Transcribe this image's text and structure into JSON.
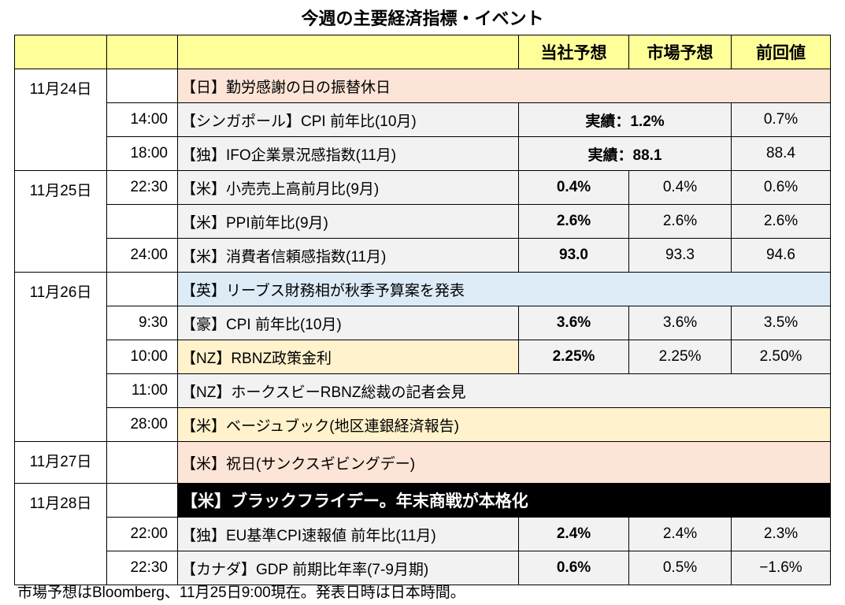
{
  "title": "今週の主要経済指標・イベント",
  "headers": [
    "",
    "",
    "",
    "当社予想",
    "市場予想",
    "前回値"
  ],
  "colors": {
    "header": "#ffff99",
    "holiday": "#fce4d6",
    "uk": "#ddebf7",
    "nz": "#fff2cc",
    "gray": "#f2f2f2",
    "black": "#000000"
  },
  "rows": [
    {
      "date": "11月24日",
      "time": "",
      "event": "【日】勤労感謝の日の振替休日",
      "type": "span",
      "style": "holiday"
    },
    {
      "date": "",
      "time": "14:00",
      "event": "【シンガポール】CPI 前年比(10月)",
      "type": "actual",
      "actual": "実績：1.2%",
      "prev": "0.7%"
    },
    {
      "date": "",
      "time": "18:00",
      "event": "【独】IFO企業景況感指数(11月)",
      "type": "actual",
      "actual": "実績：88.1",
      "prev": "88.4"
    },
    {
      "date": "11月25日",
      "time": "22:30",
      "event": "【米】小売売上高前月比(9月)",
      "type": "normal",
      "values": [
        "0.4%",
        "0.4%",
        "0.6%"
      ]
    },
    {
      "date": "",
      "time": "",
      "event": "【米】PPI前年比(9月)",
      "type": "normal",
      "values": [
        "2.6%",
        "2.6%",
        "2.6%"
      ]
    },
    {
      "date": "",
      "time": "24:00",
      "event": "【米】消費者信頼感指数(11月)",
      "type": "normal",
      "values": [
        "93.0",
        "93.3",
        "94.6"
      ]
    },
    {
      "date": "11月26日",
      "time": "",
      "event": "【英】リーブス財務相が秋季予算案を発表",
      "type": "span",
      "style": "uk"
    },
    {
      "date": "",
      "time": "9:30",
      "event": "【豪】CPI 前年比(10月)",
      "type": "normal",
      "values": [
        "3.6%",
        "3.6%",
        "3.5%"
      ]
    },
    {
      "date": "",
      "time": "10:00",
      "event": "【NZ】RBNZ政策金利",
      "type": "normal",
      "style": "nz",
      "values": [
        "2.25%",
        "2.25%",
        "2.50%"
      ]
    },
    {
      "date": "",
      "time": "11:00",
      "event": "【NZ】ホークスビーRBNZ総裁の記者会見",
      "type": "span",
      "style": "gray"
    },
    {
      "date": "",
      "time": "28:00",
      "event": "【米】ベージュブック(地区連銀経済報告)",
      "type": "span",
      "style": "nz"
    },
    {
      "date": "11月27日",
      "time": "",
      "event": "【米】祝日(サンクスギビングデー)",
      "type": "span",
      "style": "holiday"
    },
    {
      "date": "11月28日",
      "time": "",
      "event": "【米】ブラックフライデー。年末商戦が本格化",
      "type": "span",
      "style": "black"
    },
    {
      "date": "",
      "time": "22:00",
      "event": "【独】EU基準CPI速報値 前年比(11月)",
      "type": "normal",
      "values": [
        "2.4%",
        "2.4%",
        "2.3%"
      ]
    },
    {
      "date": "",
      "time": "22:30",
      "event": "【カナダ】GDP 前期比年率(7-9月期)",
      "type": "normal",
      "values": [
        "0.6%",
        "0.5%",
        "−1.6%"
      ]
    }
  ],
  "note": "市場予想はBloomberg、11月25日9:00現在。発表日時は日本時間。"
}
